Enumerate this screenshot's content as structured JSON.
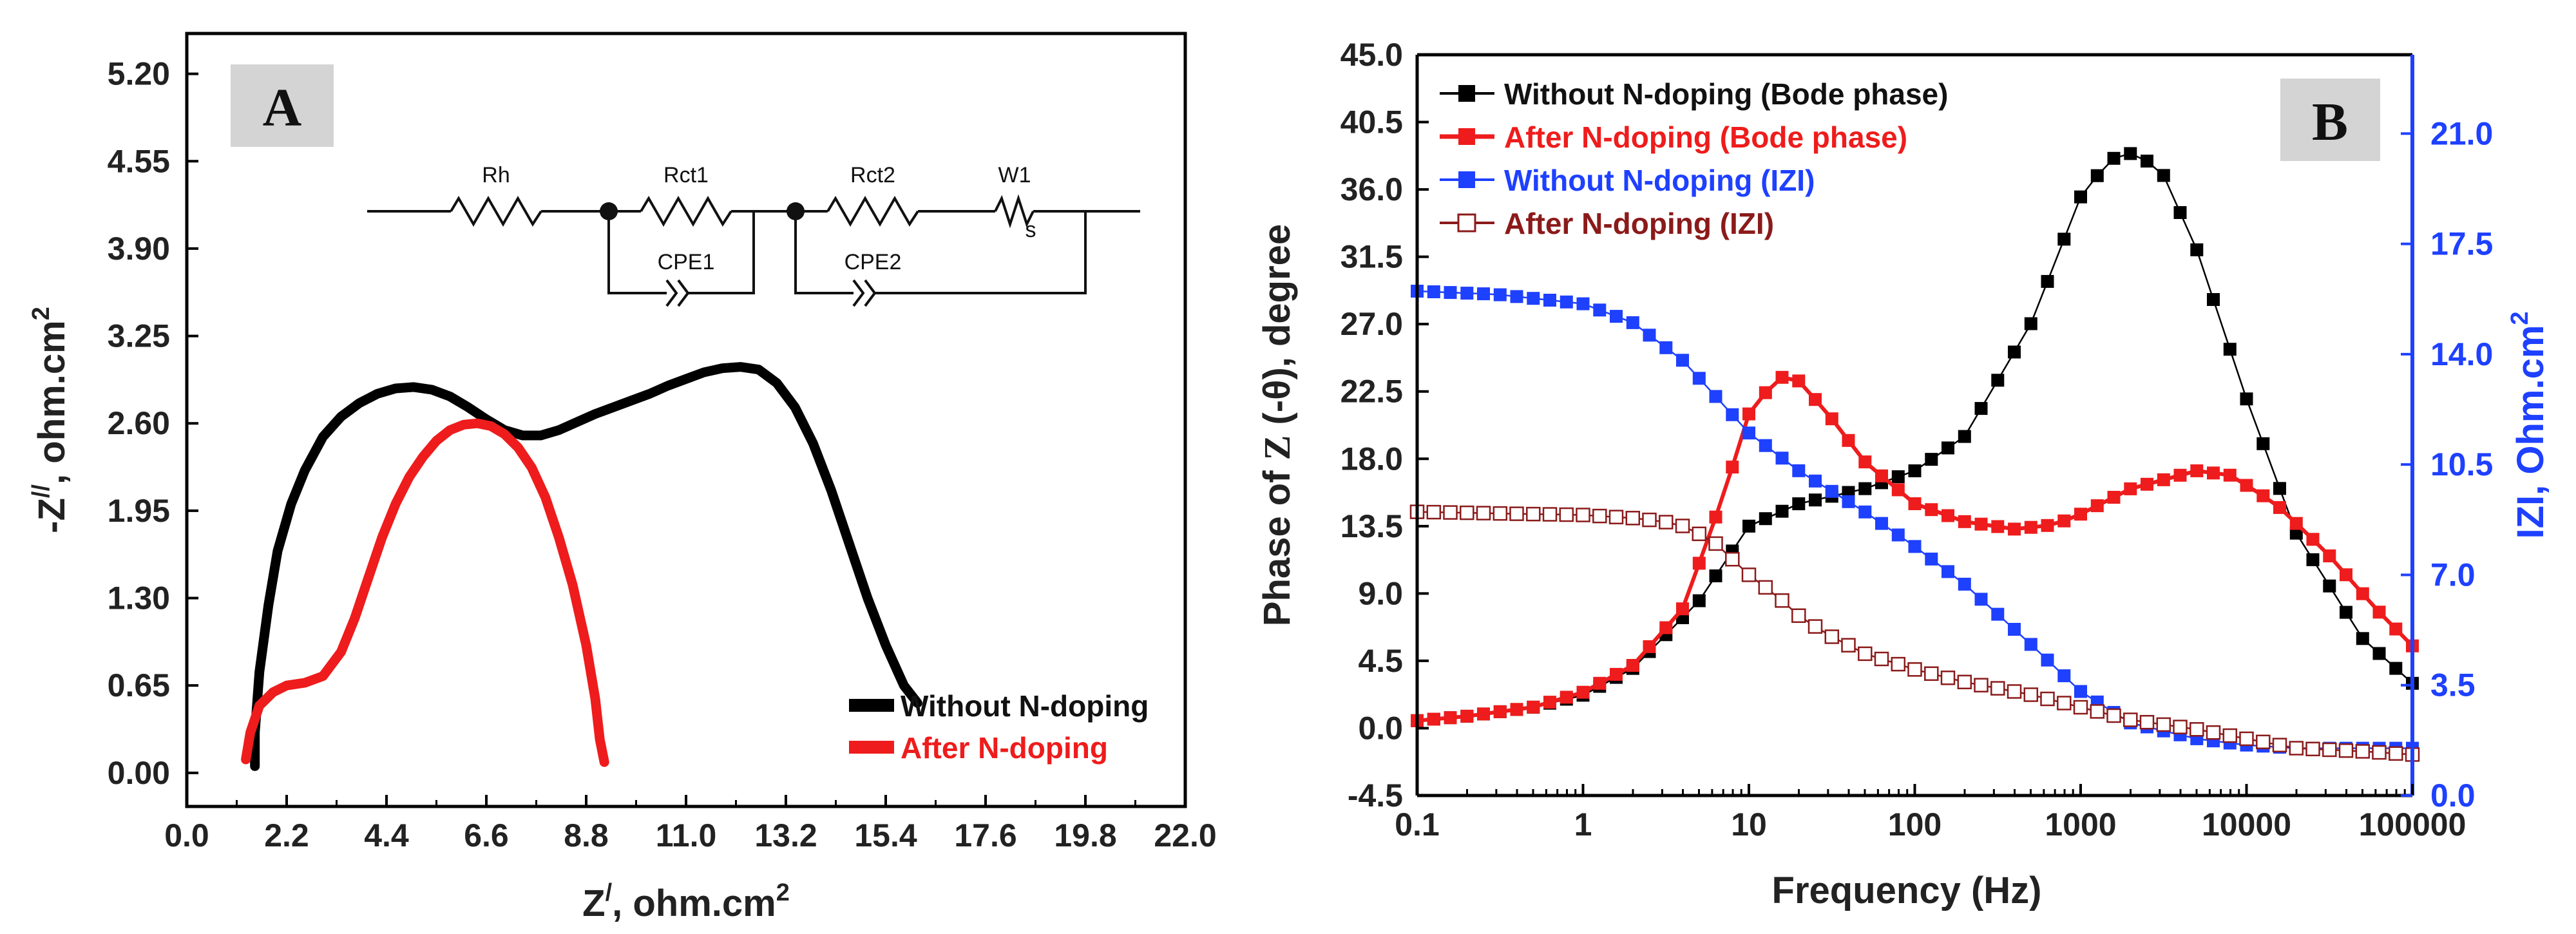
{
  "chart_data": [
    {
      "panel": "A",
      "type": "line",
      "xlabel": "Z/, ohm.cm2",
      "xlabel_main": "Z",
      "xlabel_sup": "/",
      "xlabel_unit": ", ohm.cm",
      "xlabel_unit_sup": "2",
      "ylabel": "-Z//, ohm.cm2",
      "ylabel_main": "-Z",
      "ylabel_sup": "//",
      "ylabel_unit": ", ohm.cm",
      "ylabel_unit_sup": "2",
      "xlim": [
        0,
        22
      ],
      "ylim": [
        -0.25,
        5.5
      ],
      "xticks": [
        "0.0",
        "2.2",
        "4.4",
        "6.6",
        "8.8",
        "11.0",
        "13.2",
        "15.4",
        "17.6",
        "19.8",
        "22.0"
      ],
      "yticks": [
        "0.00",
        "0.65",
        "1.30",
        "1.95",
        "2.60",
        "3.25",
        "3.90",
        "4.55",
        "5.20"
      ],
      "legend_position": "bottom-right",
      "series": [
        {
          "name": "Without N-doping",
          "color": "#000000",
          "x": [
            1.5,
            1.5,
            1.6,
            1.8,
            2.0,
            2.3,
            2.6,
            3.0,
            3.4,
            3.8,
            4.2,
            4.6,
            5.0,
            5.4,
            5.8,
            6.2,
            6.6,
            7.0,
            7.4,
            7.8,
            8.2,
            8.6,
            9.0,
            9.4,
            9.8,
            10.2,
            10.6,
            11.0,
            11.4,
            11.8,
            12.2,
            12.6,
            13.0,
            13.4,
            13.8,
            14.2,
            14.6,
            15.0,
            15.4,
            15.8,
            16.1
          ],
          "y": [
            0.05,
            0.3,
            0.75,
            1.25,
            1.65,
            2.0,
            2.25,
            2.5,
            2.65,
            2.75,
            2.82,
            2.86,
            2.87,
            2.85,
            2.8,
            2.72,
            2.63,
            2.55,
            2.51,
            2.51,
            2.55,
            2.61,
            2.67,
            2.72,
            2.77,
            2.82,
            2.88,
            2.93,
            2.98,
            3.01,
            3.02,
            3.0,
            2.9,
            2.72,
            2.45,
            2.1,
            1.7,
            1.3,
            0.95,
            0.65,
            0.52
          ]
        },
        {
          "name": "After N-doping",
          "color": "#ee1c1c",
          "x": [
            1.3,
            1.4,
            1.6,
            1.9,
            2.2,
            2.6,
            3.0,
            3.4,
            3.7,
            4.0,
            4.3,
            4.6,
            4.9,
            5.2,
            5.5,
            5.8,
            6.1,
            6.4,
            6.7,
            7.0,
            7.3,
            7.6,
            7.9,
            8.2,
            8.5,
            8.8,
            9.0,
            9.1,
            9.2
          ],
          "y": [
            0.1,
            0.3,
            0.5,
            0.6,
            0.65,
            0.67,
            0.72,
            0.9,
            1.15,
            1.45,
            1.75,
            2.0,
            2.2,
            2.35,
            2.47,
            2.55,
            2.59,
            2.6,
            2.58,
            2.52,
            2.42,
            2.27,
            2.05,
            1.75,
            1.4,
            0.95,
            0.55,
            0.25,
            0.08
          ]
        }
      ],
      "inset_circuit": {
        "labels": [
          "Rh",
          "Rct1",
          "Rct2",
          "W1",
          "CPE1",
          "CPE2"
        ],
        "w_subscript": "s"
      }
    },
    {
      "panel": "B",
      "type": "scatter",
      "xlabel": "Frequency (Hz)",
      "ylabel_left": "Phase of Z (-θ), degree",
      "ylabel_left_pre": "Phase of ",
      "ylabel_left_z": "Z",
      "ylabel_left_post": " (-θ), degree",
      "ylabel_right": "IZI, Ohm.cm2",
      "ylabel_right_main": "IZI, Ohm.cm",
      "ylabel_right_sup": "2",
      "xscale": "log",
      "xlim": [
        0.1,
        100000
      ],
      "ylim_left": [
        -4.5,
        45
      ],
      "ylim_right": [
        0,
        23.5
      ],
      "xticks": [
        "0.1",
        "1",
        "10",
        "100",
        "1000",
        "10000",
        "100000"
      ],
      "yticks_left": [
        "-4.5",
        "0.0",
        "4.5",
        "9.0",
        "13.5",
        "18.0",
        "22.5",
        "27.0",
        "31.5",
        "36.0",
        "40.5",
        "45.0"
      ],
      "yticks_right": [
        "0.0",
        "3.5",
        "7.0",
        "10.5",
        "14.0",
        "17.5",
        "21.0"
      ],
      "legend_position": "top-left",
      "series": [
        {
          "name": "Without N-doping (Bode phase)",
          "axis": "left",
          "color": "#000000",
          "marker": "filled-square",
          "x": [
            0.1,
            0.2,
            0.5,
            1,
            2,
            5,
            10,
            20,
            50,
            100,
            200,
            500,
            1000,
            1500,
            2000,
            3000,
            5000,
            10000,
            20000,
            50000,
            100000
          ],
          "y": [
            0.5,
            0.8,
            1.4,
            2.2,
            4.0,
            8.5,
            13.5,
            15.0,
            16.0,
            17.2,
            19.5,
            27.0,
            35.5,
            38.0,
            38.4,
            37.5,
            32.0,
            22.0,
            13.0,
            6.0,
            3.0
          ]
        },
        {
          "name": "After N-doping (Bode phase)",
          "axis": "left",
          "color": "#ee1c1c",
          "marker": "filled-square",
          "x": [
            0.1,
            0.2,
            0.5,
            1,
            2,
            4,
            7,
            10,
            15,
            20,
            30,
            50,
            100,
            200,
            400,
            700,
            1000,
            2000,
            5000,
            8000,
            15000,
            30000,
            60000,
            100000
          ],
          "y": [
            0.5,
            0.8,
            1.4,
            2.4,
            4.2,
            8.0,
            15.5,
            21.0,
            23.5,
            23.2,
            21.0,
            17.8,
            15.0,
            13.8,
            13.3,
            13.6,
            14.3,
            16.0,
            17.2,
            16.9,
            15.0,
            11.8,
            8.0,
            5.5
          ]
        },
        {
          "name": "Without N-doping (IZI)",
          "axis": "right",
          "color": "#1e40ff",
          "marker": "filled-square",
          "x": [
            0.1,
            0.3,
            1,
            2,
            4,
            7,
            10,
            20,
            50,
            100,
            200,
            500,
            1000,
            2000,
            5000,
            10000,
            20000,
            50000,
            100000
          ],
          "y": [
            16.0,
            15.9,
            15.6,
            15.0,
            13.8,
            12.4,
            11.5,
            10.3,
            9.0,
            7.9,
            6.7,
            4.8,
            3.3,
            2.3,
            1.8,
            1.6,
            1.5,
            1.5,
            1.5
          ]
        },
        {
          "name": "After N-doping (IZI)",
          "axis": "right",
          "color": "#8b1a1a",
          "marker": "open-square",
          "x": [
            0.1,
            0.3,
            1,
            2,
            3,
            4,
            6,
            10,
            15,
            20,
            30,
            50,
            100,
            200,
            500,
            1000,
            2000,
            5000,
            10000,
            20000,
            50000,
            100000
          ],
          "y": [
            9.0,
            8.95,
            8.9,
            8.8,
            8.7,
            8.55,
            8.1,
            7.0,
            6.3,
            5.7,
            5.1,
            4.5,
            4.0,
            3.6,
            3.2,
            2.8,
            2.4,
            2.1,
            1.8,
            1.5,
            1.4,
            1.3
          ]
        }
      ]
    }
  ]
}
